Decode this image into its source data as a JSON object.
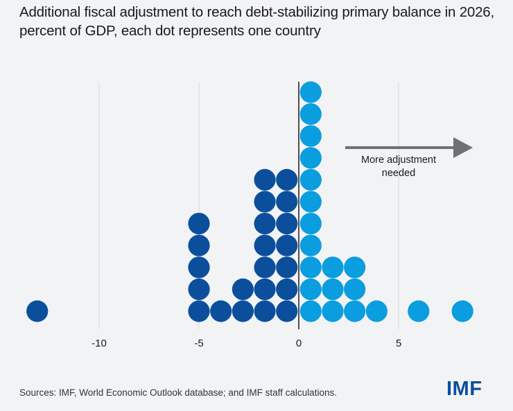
{
  "title": "Additional fiscal adjustment to reach debt-stabilizing primary balance in 2026, percent of GDP, each dot represents one country",
  "source": "Sources: IMF, World Economic Outlook database; and IMF staff calculations.",
  "logo": "IMF",
  "colors": {
    "negative_dots": "#0b4f9c",
    "positive_dots": "#0a9ddf",
    "gridline": "#d8d9dc",
    "zero_axis": "#1a1a1a",
    "arrow": "#6e7073"
  },
  "chart_data": {
    "type": "scatter",
    "subtype": "dot-plot (stacked dots, one per country)",
    "title": "Additional fiscal adjustment to reach debt-stabilizing primary balance in 2026, percent of GDP, each dot represents one country",
    "xlabel": "",
    "ylabel": "",
    "xlim": [
      -14.5,
      9.5
    ],
    "xticks": [
      -10,
      -5,
      0,
      5
    ],
    "xtick_labels": [
      "-10",
      "-5",
      "0",
      "5"
    ],
    "grid": "vertical",
    "annotation": {
      "text": "More adjustment needed",
      "arrow_direction": "right"
    },
    "bins": [
      {
        "x": -13.1,
        "count": 1,
        "group": "negative"
      },
      {
        "x": -5.0,
        "count": 5,
        "group": "negative"
      },
      {
        "x": -3.9,
        "count": 1,
        "group": "negative"
      },
      {
        "x": -2.8,
        "count": 2,
        "group": "negative"
      },
      {
        "x": -1.7,
        "count": 7,
        "group": "negative"
      },
      {
        "x": -0.6,
        "count": 7,
        "group": "negative"
      },
      {
        "x": 0.6,
        "count": 11,
        "group": "positive"
      },
      {
        "x": 1.7,
        "count": 3,
        "group": "positive"
      },
      {
        "x": 2.8,
        "count": 3,
        "group": "positive"
      },
      {
        "x": 3.9,
        "count": 1,
        "group": "positive"
      },
      {
        "x": 6.0,
        "count": 1,
        "group": "positive"
      },
      {
        "x": 8.2,
        "count": 1,
        "group": "positive"
      }
    ]
  }
}
